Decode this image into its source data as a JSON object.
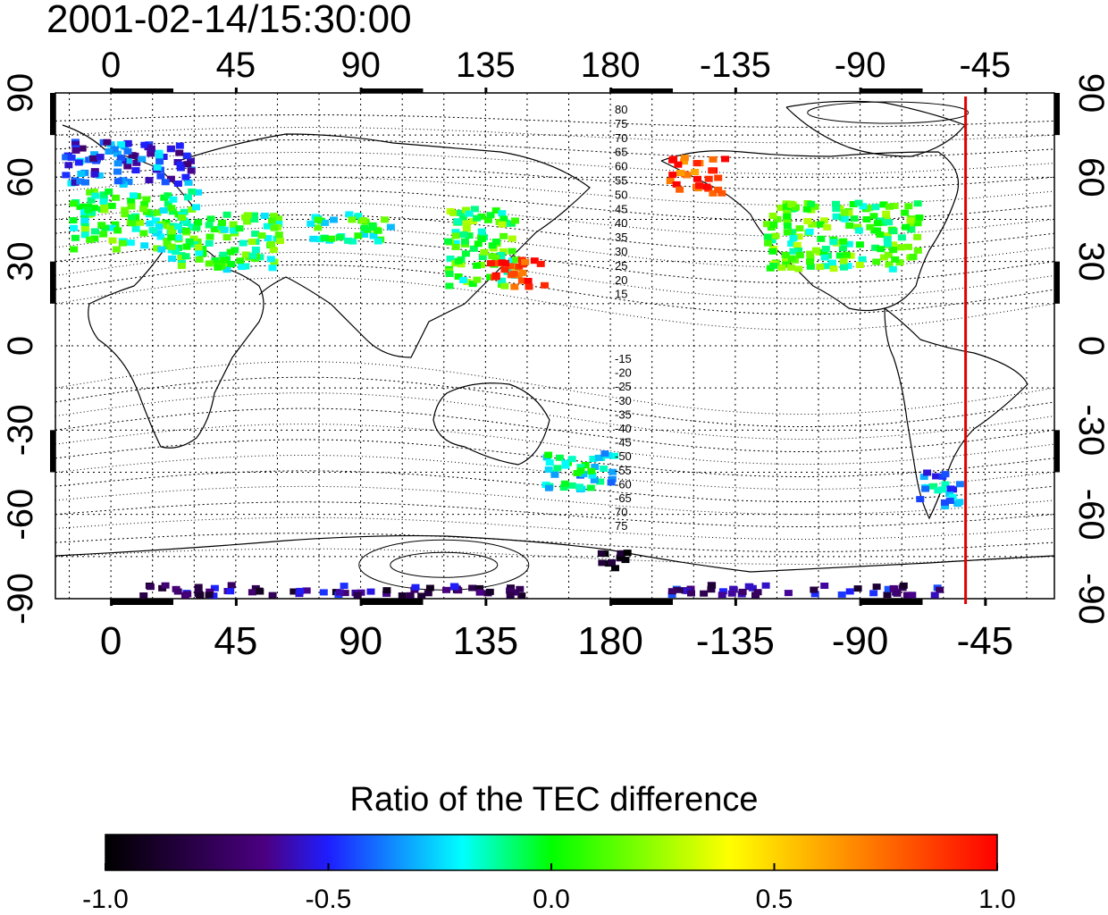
{
  "title": "2001-02-14/15:30:00",
  "map": {
    "top_lon_ticks": [
      "0",
      "45",
      "90",
      "135",
      "180",
      "-135",
      "-90",
      "-45"
    ],
    "bottom_lon_ticks": [
      "0",
      "45",
      "90",
      "135",
      "180",
      "-135",
      "-90",
      "-45"
    ],
    "left_lat_ticks": [
      "90",
      "60",
      "30",
      "0",
      "-30",
      "-60",
      "-90"
    ],
    "right_lat_ticks": [
      "90",
      "60",
      "30",
      "0",
      "-30",
      "-60",
      "-90"
    ],
    "lon_range": [
      -20,
      340
    ],
    "lat_range": [
      -90,
      90
    ],
    "gridlines": "dotted, every 15 degrees",
    "marker_line_lon": -52,
    "marker_line_color": "#e00000",
    "contour_labels_north": [
      "80",
      "75",
      "70",
      "65",
      "60",
      "55",
      "50",
      "45",
      "40",
      "35",
      "30",
      "25",
      "20",
      "15"
    ],
    "contour_labels_south": [
      "-15",
      "-20",
      "-25",
      "-30",
      "-35",
      "-40",
      "-45",
      "-50",
      "-55",
      "-60",
      "-65",
      "70",
      "75"
    ]
  },
  "colorbar": {
    "title": "Ratio of the TEC difference",
    "tick_labels": [
      "-1.0",
      "-0.5",
      "0.0",
      "0.5",
      "1.0"
    ],
    "range": [
      -1.0,
      1.0
    ],
    "colors": [
      "#000000",
      "#4b0082",
      "#1e1eff",
      "#00ffff",
      "#00ff00",
      "#ffff00",
      "#ff8000",
      "#ff0000"
    ]
  },
  "chart_data": {
    "type": "heatmap",
    "title": "2001-02-14/15:30:00",
    "value_label": "Ratio of the TEC difference",
    "value_range": [
      -1.0,
      1.0
    ],
    "xlim": [
      -20,
      340
    ],
    "ylim": [
      -90,
      90
    ],
    "regions": [
      {
        "lon_range": [
          -18,
          28
        ],
        "lat_range": [
          58,
          74
        ],
        "value": -0.45
      },
      {
        "lon_range": [
          -15,
          30
        ],
        "lat_range": [
          35,
          56
        ],
        "value": 0.0
      },
      {
        "lon_range": [
          20,
          60
        ],
        "lat_range": [
          28,
          48
        ],
        "value": 0.0
      },
      {
        "lon_range": [
          70,
          100
        ],
        "lat_range": [
          38,
          48
        ],
        "value": -0.05
      },
      {
        "lon_range": [
          120,
          145
        ],
        "lat_range": [
          22,
          50
        ],
        "value": 0.05
      },
      {
        "lon_range": [
          135,
          155
        ],
        "lat_range": [
          22,
          32
        ],
        "value": 0.9
      },
      {
        "lon_range": [
          -160,
          -140
        ],
        "lat_range": [
          55,
          68
        ],
        "value": 0.85
      },
      {
        "lon_range": [
          -125,
          -70
        ],
        "lat_range": [
          28,
          52
        ],
        "value": 0.05
      },
      {
        "lon_range": [
          -70,
          -55
        ],
        "lat_range": [
          -56,
          -44
        ],
        "value": -0.3
      },
      {
        "lon_range": [
          155,
          180
        ],
        "lat_range": [
          -50,
          -36
        ],
        "value": -0.2
      },
      {
        "lon_range": [
          10,
          150
        ],
        "lat_range": [
          -88,
          -84
        ],
        "value": -0.7
      },
      {
        "lon_range": [
          -160,
          -60
        ],
        "lat_range": [
          -88,
          -84
        ],
        "value": -0.65
      },
      {
        "lon_range": [
          175,
          185
        ],
        "lat_range": [
          -78,
          -72
        ],
        "value": -0.95
      }
    ]
  }
}
